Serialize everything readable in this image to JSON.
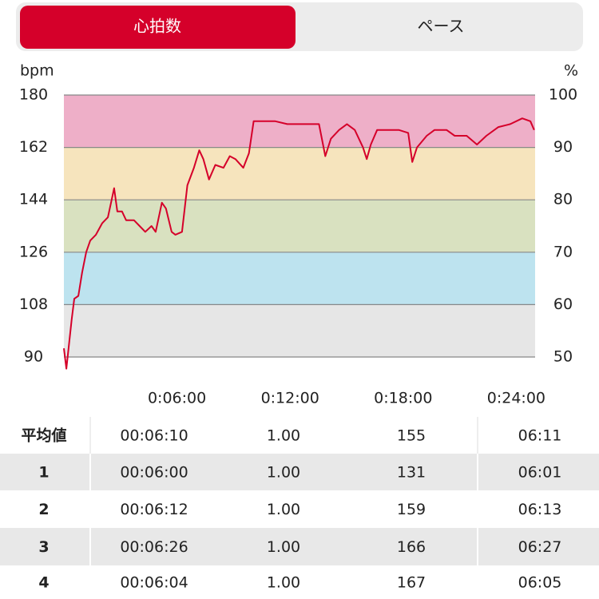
{
  "tabs": [
    {
      "label": "心拍数",
      "active": true
    },
    {
      "label": "ペース",
      "active": false
    }
  ],
  "chart_data": {
    "type": "line",
    "y_label": "bpm",
    "y2_label": "%",
    "xlim": [
      0,
      1500
    ],
    "xticks": [
      {
        "value": 360,
        "label": "0:06:00"
      },
      {
        "value": 720,
        "label": "0:12:00"
      },
      {
        "value": 1080,
        "label": "0:18:00"
      },
      {
        "value": 1440,
        "label": "0:24:00"
      }
    ],
    "ylim": [
      90,
      180
    ],
    "yticks": [
      90,
      108,
      126,
      144,
      162,
      180
    ],
    "y2lim": [
      50,
      100
    ],
    "y2ticks": [
      50,
      60,
      70,
      80,
      90,
      100
    ],
    "zone_colors": [
      "#e6e6e6",
      "#bde3ef",
      "#d9e1c0",
      "#f6e4bd",
      "#eeafc8"
    ],
    "grid": true,
    "series": [
      {
        "color": "#d5002a",
        "x": [
          0,
          8,
          25,
          33,
          46,
          58,
          71,
          84,
          102,
          122,
          140,
          152,
          160,
          170,
          185,
          198,
          223,
          241,
          259,
          279,
          292,
          312,
          325,
          343,
          355,
          376,
          393,
          414,
          431,
          444,
          462,
          482,
          508,
          528,
          546,
          571,
          589,
          604,
          622,
          673,
          711,
          774,
          812,
          832,
          850,
          876,
          901,
          926,
          952,
          964,
          977,
          997,
          1066,
          1096,
          1109,
          1124,
          1155,
          1180,
          1218,
          1244,
          1282,
          1315,
          1345,
          1383,
          1421,
          1459,
          1485,
          1497
        ],
        "values": [
          93,
          86,
          103,
          110,
          111,
          119,
          126,
          130,
          132,
          136,
          138,
          144,
          148,
          140,
          140,
          137,
          137,
          135,
          133,
          135,
          133,
          143,
          141,
          133,
          132,
          133,
          149,
          155,
          161,
          158,
          151,
          156,
          155,
          159,
          158,
          155,
          160,
          171,
          171,
          171,
          170,
          170,
          170,
          159,
          165,
          168,
          170,
          168,
          162,
          158,
          163,
          168,
          168,
          167,
          157,
          162,
          166,
          168,
          168,
          166,
          166,
          163,
          166,
          169,
          170,
          172,
          171,
          168
        ]
      }
    ]
  },
  "table": {
    "rows": [
      [
        "平均値",
        "00:06:10",
        "1.00",
        "155",
        "06:11"
      ],
      [
        "1",
        "00:06:00",
        "1.00",
        "131",
        "06:01"
      ],
      [
        "2",
        "00:06:12",
        "1.00",
        "159",
        "06:13"
      ],
      [
        "3",
        "00:06:26",
        "1.00",
        "166",
        "06:27"
      ],
      [
        "4",
        "00:06:04",
        "1.00",
        "167",
        "06:05"
      ]
    ]
  }
}
